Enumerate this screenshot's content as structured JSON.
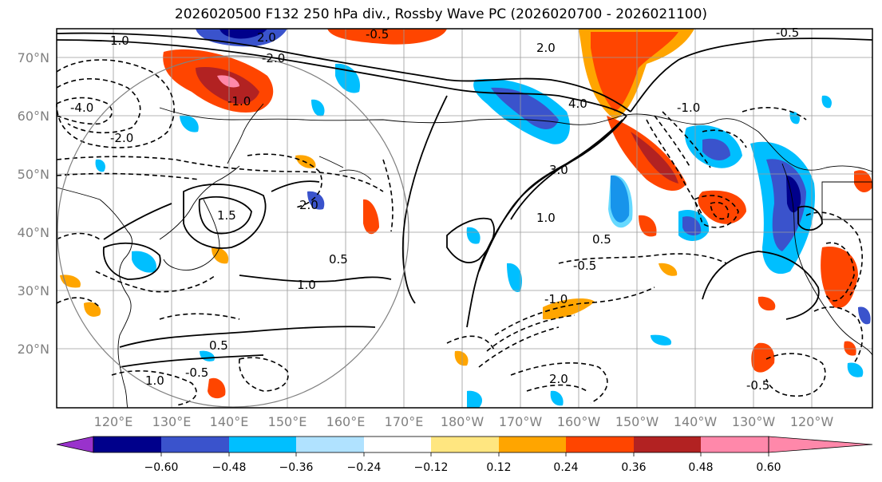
{
  "title": "2026020500 F132 250 hPa div., Rossby Wave PC (2026020700 - 2026021100)",
  "map": {
    "lat_labels": [
      "70°N",
      "60°N",
      "50°N",
      "40°N",
      "30°N",
      "20°N"
    ],
    "lon_labels": [
      "120°E",
      "130°E",
      "140°E",
      "150°E",
      "160°E",
      "170°E",
      "180°W",
      "170°W",
      "160°W",
      "150°W",
      "140°W",
      "130°W",
      "120°W"
    ],
    "contour_labels": [
      "2.0",
      "1.0",
      "-0.5",
      "-4.0",
      "-2.0",
      "-1.0",
      "0.5",
      "1.5",
      "2.0",
      "4.0",
      "3.0",
      "1.0",
      "-0.5",
      "-1.0",
      "2.0",
      "1.0",
      "0.5",
      "-0.5",
      "0.5",
      "-0.5",
      "-1.0",
      "2.0",
      "1.0",
      "-2.0",
      "-0.5"
    ]
  },
  "colorbar": {
    "tick_labels": [
      "−0.60",
      "−0.48",
      "−0.36",
      "−0.24",
      "−0.12",
      "0.12",
      "0.24",
      "0.36",
      "0.48",
      "0.60"
    ],
    "colors": [
      "#9932cc",
      "#00008b",
      "#3a53cc",
      "#00bfff",
      "#b0e2ff",
      "#ffffff",
      "#ffe680",
      "#ffa500",
      "#ff4500",
      "#b22222",
      "#ff88aa"
    ]
  }
}
